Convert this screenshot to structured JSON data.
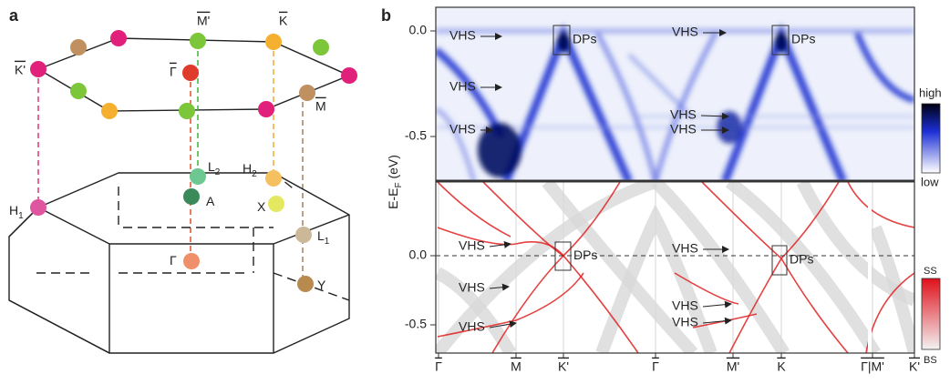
{
  "panel_a": {
    "label": "a",
    "surface_labels": [
      "M'",
      "K",
      "K'",
      "Γ",
      "M"
    ],
    "bulk_labels": [
      {
        "main": "H",
        "sub": "1"
      },
      {
        "main": "L",
        "sub": "2"
      },
      {
        "main": "H",
        "sub": "2"
      },
      {
        "main": "A"
      },
      {
        "main": "X"
      },
      {
        "main": "Γ"
      },
      {
        "main": "L",
        "sub": "1"
      },
      {
        "main": "Y"
      }
    ]
  },
  "panel_b": {
    "label": "b",
    "axis_label": {
      "main": "E-E",
      "sub": "F",
      "unit": " (eV)"
    },
    "top_yticks": [
      "0.0",
      "-0.5"
    ],
    "bottom_yticks": [
      "0.0",
      "-0.5"
    ],
    "kpoints": [
      "Γ",
      "M",
      "K'",
      "Γ",
      "M'",
      "K",
      "Γ|M'",
      "K'"
    ],
    "top_annotations": [
      "VHS",
      "VHS",
      "VHS",
      "VHS",
      "VHS",
      "VHS"
    ],
    "top_dps": [
      "DPs",
      "DPs"
    ],
    "bottom_annotations": [
      "VHS",
      "VHS",
      "VHS",
      "VHS",
      "VHS",
      "VHS"
    ],
    "bottom_dps": [
      "DPs",
      "DPs"
    ],
    "top_colorbar": {
      "high": "high",
      "low": "low"
    },
    "bottom_colorbar": {
      "top": "SS",
      "bottom": "BS"
    }
  }
}
